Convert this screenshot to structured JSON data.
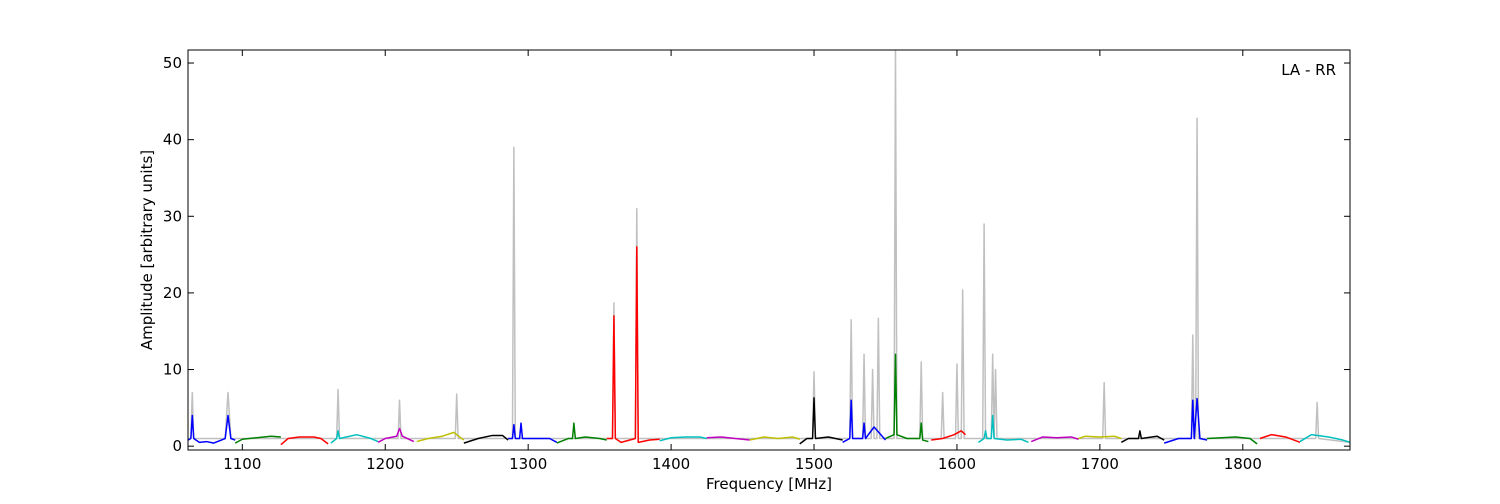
{
  "chart_data": {
    "type": "line",
    "annotation": "LA - RR",
    "xlabel": "Frequency [MHz]",
    "ylabel": "Amplitude [arbitrary units]",
    "xlim": [
      1062,
      1875
    ],
    "ylim": [
      -0.5,
      51.7
    ],
    "xticks": [
      1100,
      1200,
      1300,
      1400,
      1500,
      1600,
      1700,
      1800
    ],
    "yticks": [
      0,
      10,
      20,
      30,
      40,
      50
    ],
    "series": [
      {
        "color": "#c0c0c0",
        "x": [
          1062,
          1064,
          1065,
          1066,
          1088,
          1090,
          1092,
          1166,
          1167,
          1168,
          1209,
          1210,
          1211,
          1249,
          1250,
          1251,
          1289,
          1290,
          1291,
          1359,
          1360,
          1361,
          1375,
          1376,
          1377,
          1499,
          1500,
          1501,
          1525,
          1526,
          1527,
          1534,
          1535,
          1536,
          1540,
          1541,
          1542,
          1544,
          1545,
          1546,
          1556,
          1557,
          1558,
          1574,
          1575,
          1576,
          1589,
          1590,
          1591,
          1599,
          1600,
          1601,
          1603,
          1604,
          1605,
          1618,
          1619,
          1620,
          1624,
          1625,
          1626,
          1627,
          1628,
          1702,
          1703,
          1704,
          1764,
          1765,
          1766,
          1767,
          1768,
          1769,
          1851,
          1852,
          1853,
          1875
        ],
        "values": [
          1,
          1,
          7,
          1,
          1,
          7,
          1,
          1,
          7.4,
          1,
          1,
          6,
          1,
          1,
          6.8,
          1,
          1,
          39,
          1,
          1,
          18.7,
          1,
          1,
          31,
          1,
          1,
          9.7,
          1,
          1,
          16.5,
          1,
          1,
          12,
          1,
          1,
          10,
          1,
          1,
          16.7,
          1,
          1,
          51.7,
          1,
          1,
          11,
          1,
          1,
          7,
          1,
          1,
          10.7,
          1,
          1,
          20.4,
          1,
          1,
          29,
          1,
          1,
          12,
          1,
          10,
          1,
          1,
          8.3,
          1,
          1,
          14.5,
          1,
          1,
          42.8,
          1,
          1,
          5.7,
          1,
          0.5
        ]
      },
      {
        "color": "#0000ff",
        "x": [
          1062,
          1064,
          1065,
          1066,
          1070,
          1075,
          1080,
          1088,
          1090,
          1092,
          1095
        ],
        "values": [
          0.8,
          1,
          4,
          1,
          0.5,
          0.6,
          0.4,
          1,
          4,
          1,
          0.8
        ]
      },
      {
        "color": "#008000",
        "x": [
          1095,
          1100,
          1110,
          1120,
          1127
        ],
        "values": [
          0.4,
          0.9,
          1.1,
          1.3,
          1.2
        ]
      },
      {
        "color": "#ff0000",
        "x": [
          1127,
          1132,
          1140,
          1150,
          1155,
          1160
        ],
        "values": [
          0.2,
          1,
          1.2,
          1.2,
          1,
          0.3
        ]
      },
      {
        "color": "#00bfbf",
        "x": [
          1162,
          1166,
          1167,
          1168,
          1180,
          1190,
          1195
        ],
        "values": [
          0.4,
          1,
          2,
          1,
          1.5,
          1,
          0.6
        ]
      },
      {
        "color": "#bf00bf",
        "x": [
          1195,
          1200,
          1208,
          1210,
          1212,
          1220
        ],
        "values": [
          0.5,
          1,
          1.3,
          2.3,
          1.3,
          0.6
        ]
      },
      {
        "color": "#bfbf00",
        "x": [
          1222,
          1230,
          1240,
          1248,
          1250,
          1255
        ],
        "values": [
          0.6,
          1,
          1.3,
          1.8,
          1.5,
          0.8
        ]
      },
      {
        "color": "#000000",
        "x": [
          1255,
          1265,
          1275,
          1282,
          1286
        ],
        "values": [
          0.4,
          1,
          1.4,
          1.4,
          0.8
        ]
      },
      {
        "color": "#0000ff",
        "x": [
          1286,
          1289,
          1290,
          1291,
          1294,
          1295,
          1296,
          1305,
          1315,
          1320
        ],
        "values": [
          1,
          1,
          2.8,
          1,
          1,
          3,
          1,
          1,
          1,
          0.5
        ]
      },
      {
        "color": "#008000",
        "x": [
          1320,
          1328,
          1331,
          1332,
          1333,
          1340,
          1350,
          1355
        ],
        "values": [
          0.4,
          1,
          1,
          3,
          1,
          1.2,
          1,
          0.8
        ]
      },
      {
        "color": "#ff0000",
        "x": [
          1355,
          1359,
          1360,
          1361,
          1365,
          1375,
          1376,
          1377,
          1385,
          1392
        ],
        "values": [
          1,
          1,
          17,
          1,
          0.5,
          1,
          26,
          0.5,
          0.8,
          0.9
        ]
      },
      {
        "color": "#00bfbf",
        "x": [
          1392,
          1400,
          1410,
          1420,
          1425
        ],
        "values": [
          0.7,
          1.1,
          1.2,
          1.2,
          1
        ]
      },
      {
        "color": "#bf00bf",
        "x": [
          1425,
          1435,
          1445,
          1455
        ],
        "values": [
          1.1,
          1.2,
          1,
          0.8
        ]
      },
      {
        "color": "#bfbf00",
        "x": [
          1455,
          1465,
          1475,
          1485,
          1490
        ],
        "values": [
          0.8,
          1.2,
          1,
          1.2,
          0.9
        ]
      },
      {
        "color": "#000000",
        "x": [
          1490,
          1495,
          1499,
          1500,
          1501,
          1510,
          1520
        ],
        "values": [
          0.3,
          1,
          1,
          6.3,
          1,
          1.2,
          0.8
        ]
      },
      {
        "color": "#0000ff",
        "x": [
          1520,
          1525,
          1526,
          1527,
          1534,
          1535,
          1536,
          1542,
          1550
        ],
        "values": [
          0.5,
          1,
          6,
          1,
          1,
          3,
          1,
          2.5,
          0.8
        ]
      },
      {
        "color": "#008000",
        "x": [
          1550,
          1556,
          1557,
          1558,
          1565,
          1574,
          1575,
          1576,
          1580
        ],
        "values": [
          1,
          1.5,
          12,
          1.5,
          1,
          1,
          3,
          0.8,
          0.6
        ]
      },
      {
        "color": "#ff0000",
        "x": [
          1582,
          1590,
          1598,
          1603,
          1606
        ],
        "values": [
          0.8,
          1,
          1.5,
          2,
          1.5
        ]
      },
      {
        "color": "#00bfbf",
        "x": [
          1615,
          1619,
          1620,
          1621,
          1624,
          1625,
          1626,
          1635,
          1645,
          1650
        ],
        "values": [
          0.5,
          1,
          2,
          1,
          1,
          4,
          1,
          0.8,
          0.9,
          0.5
        ]
      },
      {
        "color": "#bf00bf",
        "x": [
          1652,
          1660,
          1670,
          1680,
          1685
        ],
        "values": [
          0.6,
          1.2,
          1.1,
          1.2,
          0.9
        ]
      },
      {
        "color": "#bfbf00",
        "x": [
          1685,
          1690,
          1700,
          1710,
          1715
        ],
        "values": [
          1,
          1.3,
          1.2,
          1.3,
          1
        ]
      },
      {
        "color": "#000000",
        "x": [
          1715,
          1720,
          1727,
          1728,
          1729,
          1740,
          1745
        ],
        "values": [
          0.5,
          1,
          1,
          2,
          1,
          1.3,
          0.8
        ]
      },
      {
        "color": "#0000ff",
        "x": [
          1745,
          1755,
          1764,
          1765,
          1766,
          1768,
          1770,
          1775
        ],
        "values": [
          0.4,
          1,
          1,
          6,
          1,
          6.2,
          1,
          0.8
        ]
      },
      {
        "color": "#008000",
        "x": [
          1775,
          1785,
          1795,
          1805,
          1810
        ],
        "values": [
          1,
          1.1,
          1.2,
          1,
          0.3
        ]
      },
      {
        "color": "#ff0000",
        "x": [
          1812,
          1820,
          1830,
          1840
        ],
        "values": [
          1,
          1.5,
          1.2,
          0.5
        ]
      },
      {
        "color": "#00bfbf",
        "x": [
          1840,
          1848,
          1860,
          1870,
          1875
        ],
        "values": [
          0.6,
          1.5,
          1.2,
          0.8,
          0.5
        ]
      }
    ]
  }
}
